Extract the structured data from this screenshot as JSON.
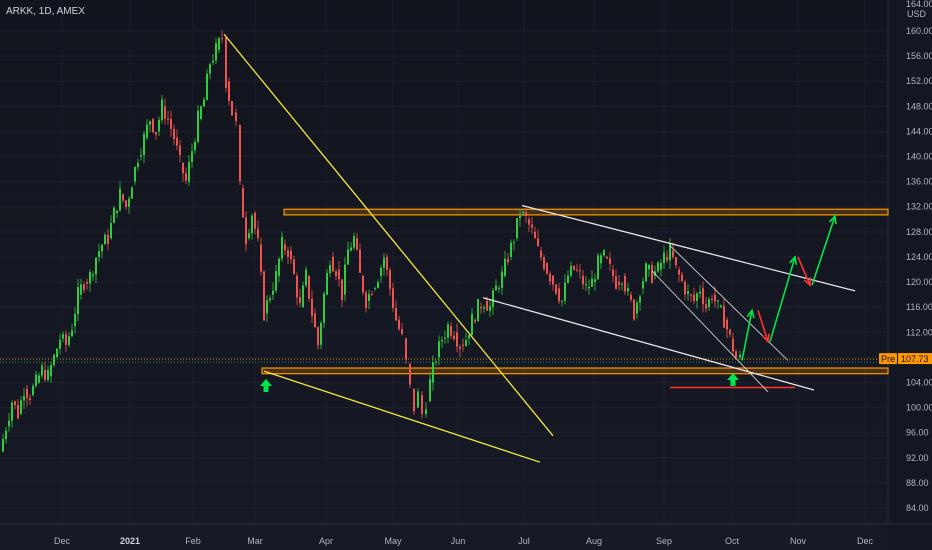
{
  "header": {
    "ticker_label": "ARKK, 1D, AMEX",
    "currency": "USD",
    "top_price_stub": "164.00"
  },
  "colors": {
    "up": "#26a69a",
    "up_bright": "#2ecc40",
    "down": "#ef5350",
    "orange_zone": "#ff9800",
    "yellow_line": "#f5e642",
    "white_line": "#e6e6e6",
    "green_arrow": "#00e64d",
    "red_arrow": "#ff3030",
    "last_price_bg": "#ff9800"
  },
  "price_label": {
    "session": "Pre",
    "value": "107.73"
  },
  "chart_data": {
    "type": "candlestick",
    "symbol": "ARKK",
    "interval": "1D",
    "exchange": "AMEX",
    "y_axis": {
      "unit": "USD",
      "range": [
        82,
        166
      ],
      "ticks": [
        84,
        88,
        92,
        96,
        100,
        104,
        108,
        112,
        116,
        120,
        124,
        128,
        132,
        136,
        140,
        144,
        148,
        152,
        156,
        160
      ]
    },
    "x_axis": {
      "ticks": [
        "Dec",
        "2021",
        "Feb",
        "Mar",
        "Apr",
        "May",
        "Jun",
        "Jul",
        "Aug",
        "Sep",
        "Oct",
        "Nov",
        "Dec"
      ],
      "bold": [
        "2021"
      ]
    },
    "last_price": 107.73,
    "session_label": "Pre",
    "price_path_closes": [
      [
        0,
        93
      ],
      [
        6,
        97
      ],
      [
        12,
        101
      ],
      [
        18,
        99
      ],
      [
        24,
        103
      ],
      [
        30,
        102
      ],
      [
        36,
        104
      ],
      [
        42,
        106
      ],
      [
        48,
        105
      ],
      [
        54,
        108
      ],
      [
        60,
        111
      ],
      [
        66,
        110
      ],
      [
        72,
        113
      ],
      [
        78,
        118
      ],
      [
        84,
        120
      ],
      [
        90,
        121
      ],
      [
        96,
        124
      ],
      [
        102,
        126
      ],
      [
        108,
        127
      ],
      [
        114,
        131
      ],
      [
        120,
        134
      ],
      [
        126,
        132
      ],
      [
        132,
        136
      ],
      [
        138,
        140
      ],
      [
        144,
        143
      ],
      [
        150,
        146
      ],
      [
        156,
        144
      ],
      [
        162,
        148
      ],
      [
        168,
        146
      ],
      [
        174,
        143
      ],
      [
        180,
        139
      ],
      [
        186,
        136
      ],
      [
        192,
        141
      ],
      [
        198,
        146
      ],
      [
        204,
        149
      ],
      [
        210,
        155
      ],
      [
        216,
        157
      ],
      [
        222,
        159
      ],
      [
        226,
        152
      ],
      [
        232,
        147
      ],
      [
        236,
        145
      ],
      [
        240,
        135
      ],
      [
        246,
        127
      ],
      [
        252,
        131
      ],
      [
        258,
        126
      ],
      [
        264,
        115
      ],
      [
        270,
        118
      ],
      [
        276,
        121
      ],
      [
        282,
        126
      ],
      [
        288,
        125
      ],
      [
        294,
        121
      ],
      [
        300,
        116
      ],
      [
        306,
        121
      ],
      [
        312,
        115
      ],
      [
        318,
        110
      ],
      [
        324,
        118
      ],
      [
        330,
        124
      ],
      [
        336,
        122
      ],
      [
        342,
        118
      ],
      [
        348,
        125
      ],
      [
        354,
        127
      ],
      [
        360,
        121
      ],
      [
        366,
        117
      ],
      [
        372,
        119
      ],
      [
        378,
        121
      ],
      [
        384,
        124
      ],
      [
        390,
        119
      ],
      [
        396,
        114
      ],
      [
        402,
        111
      ],
      [
        406,
        107
      ],
      [
        410,
        103
      ],
      [
        414,
        100
      ],
      [
        418,
        102
      ],
      [
        422,
        99
      ],
      [
        426,
        101
      ],
      [
        430,
        104
      ],
      [
        436,
        108
      ],
      [
        442,
        111
      ],
      [
        448,
        113
      ],
      [
        454,
        112
      ],
      [
        460,
        110
      ],
      [
        466,
        111
      ],
      [
        472,
        114
      ],
      [
        478,
        116
      ],
      [
        484,
        117
      ],
      [
        490,
        116
      ],
      [
        496,
        119
      ],
      [
        502,
        121
      ],
      [
        508,
        124
      ],
      [
        514,
        127
      ],
      [
        520,
        131
      ],
      [
        526,
        130
      ],
      [
        532,
        128
      ],
      [
        538,
        125
      ],
      [
        544,
        123
      ],
      [
        550,
        121
      ],
      [
        556,
        119
      ],
      [
        562,
        117
      ],
      [
        568,
        121
      ],
      [
        574,
        122
      ],
      [
        580,
        121
      ],
      [
        586,
        119
      ],
      [
        592,
        120
      ],
      [
        598,
        123
      ],
      [
        604,
        124
      ],
      [
        610,
        122
      ],
      [
        616,
        120
      ],
      [
        622,
        121
      ],
      [
        628,
        118
      ],
      [
        634,
        115
      ],
      [
        640,
        119
      ],
      [
        646,
        122
      ],
      [
        652,
        121
      ],
      [
        658,
        122
      ],
      [
        664,
        124
      ],
      [
        670,
        125
      ],
      [
        676,
        122
      ],
      [
        682,
        120
      ],
      [
        688,
        118
      ],
      [
        694,
        117
      ],
      [
        700,
        119
      ],
      [
        706,
        116
      ],
      [
        712,
        118
      ],
      [
        718,
        116
      ],
      [
        724,
        114
      ],
      [
        730,
        111
      ],
      [
        736,
        108
      ],
      [
        740,
        107.7
      ]
    ],
    "annotations": {
      "resistance_zone": {
        "from": 130.7,
        "to": 131.6
      },
      "support_zone": {
        "from": 105.4,
        "to": 106.3
      },
      "support_line": 103.2,
      "falling_wedge_top": {
        "from": [
          "Feb",
          159.5
        ],
        "to": [
          "Jun",
          91.5
        ]
      },
      "falling_wedge_bottom": {
        "from": [
          "Mar",
          105.8
        ],
        "to": [
          "Jun",
          91.0
        ]
      },
      "down_channel_top": {
        "from": [
          "Jul",
          132.0
        ],
        "to": [
          "Nov",
          118.5
        ]
      },
      "down_channel_bottom": {
        "from": [
          "Jun",
          117.5
        ],
        "to": [
          "Oct",
          102.5
        ]
      },
      "projected_path": [
        "up",
        "down",
        "up",
        "down",
        "up"
      ],
      "buy_arrows": [
        "Mar",
        "Oct"
      ]
    }
  }
}
